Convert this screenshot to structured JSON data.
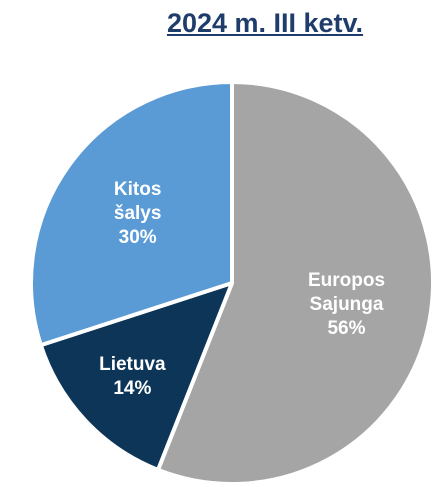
{
  "chart_data": {
    "type": "pie",
    "title": "2024 m. III ketv.",
    "categories": [
      "Europos Sajunga",
      "Lietuva",
      "Kitos šalys"
    ],
    "values": [
      56,
      14,
      30
    ],
    "value_labels": [
      "56%",
      "14%",
      "30%"
    ],
    "colors": [
      "#a5a5a5",
      "#0c3558",
      "#5b9bd5"
    ]
  }
}
